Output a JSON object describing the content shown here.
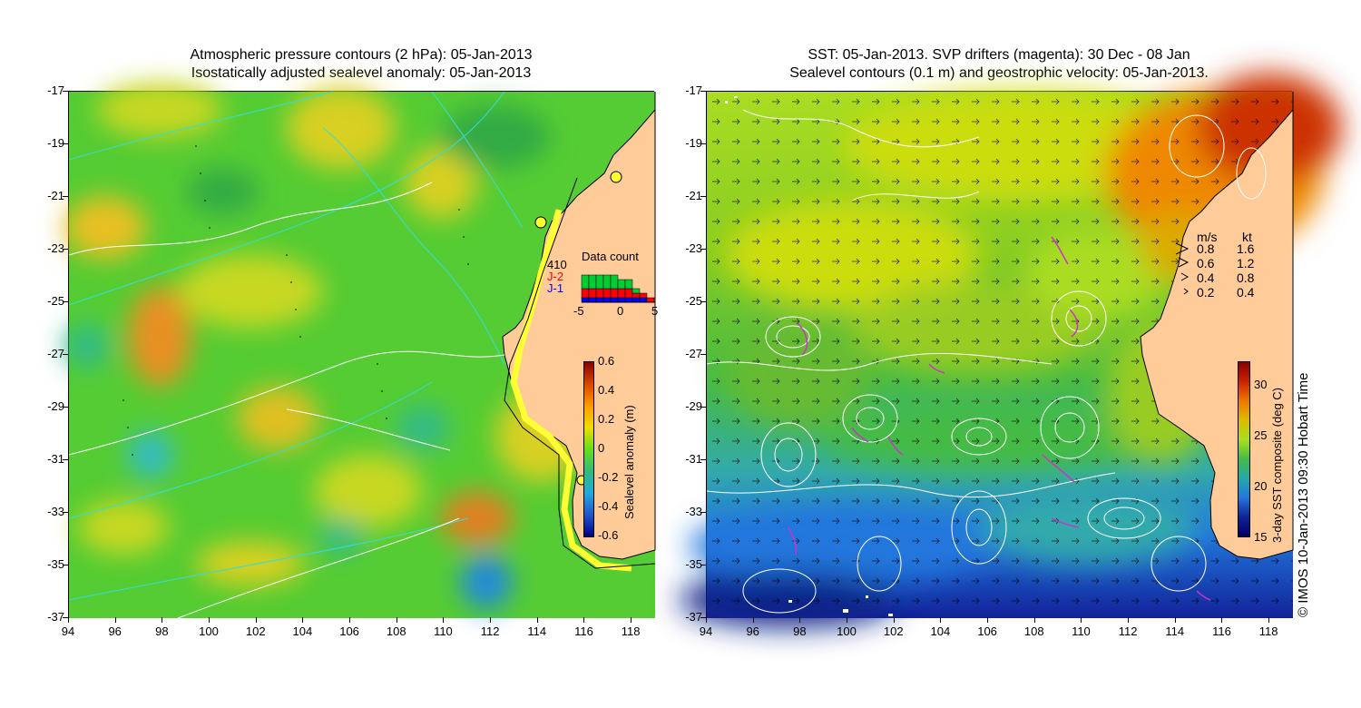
{
  "left_panel": {
    "title_line1": "Atmospheric pressure contours (2 hPa): 05-Jan-2013",
    "title_line2": "Isostatically adjusted sealevel anomaly: 05-Jan-2013",
    "colorbar": {
      "title": "Sealevel anomaly (m)",
      "ticks": [
        "0.6",
        "0.4",
        "0.2",
        "0",
        "-0.2",
        "-0.4",
        "-0.6"
      ]
    },
    "data_count": {
      "title": "Data count",
      "sat1": "410",
      "sat2": "J-2",
      "sat3": "J-1",
      "x_ticks": [
        "-5",
        "0",
        "5"
      ],
      "colors": {
        "sat1": "#00cc33",
        "sat2": "#ff0000",
        "sat3": "#0000ff"
      },
      "bars_sat1": [
        3,
        3,
        3,
        3,
        3,
        2,
        2,
        1,
        0,
        0
      ],
      "bars_sat2": [
        2,
        2,
        2,
        2,
        2,
        2,
        2,
        1,
        1,
        1
      ],
      "bars_sat3": [
        1,
        1,
        1,
        1,
        1,
        1,
        1,
        1,
        1,
        0
      ]
    }
  },
  "right_panel": {
    "title_line1": "SST: 05-Jan-2013. SVP drifters (magenta): 30 Dec - 08 Jan",
    "title_line2": "Sealevel contours (0.1 m) and geostrophic velocity: 05-Jan-2013.",
    "colorbar": {
      "title": "3-day SST composite (deg C)",
      "ticks": [
        "30",
        "25",
        "20",
        "15"
      ]
    },
    "velocity_legend": {
      "header_ms": "m/s",
      "header_kt": "kt",
      "rows": [
        {
          "ms": "0.8",
          "kt": "1.6"
        },
        {
          "ms": "0.6",
          "kt": "1.2"
        },
        {
          "ms": "0.4",
          "kt": "0.8"
        },
        {
          "ms": "0.2",
          "kt": "0.4"
        }
      ]
    }
  },
  "axes": {
    "y_ticks": [
      "-17",
      "-19",
      "-21",
      "-23",
      "-25",
      "-27",
      "-29",
      "-31",
      "-33",
      "-35",
      "-37"
    ],
    "x_ticks": [
      "94",
      "96",
      "98",
      "100",
      "102",
      "104",
      "106",
      "108",
      "110",
      "112",
      "114",
      "116",
      "118"
    ],
    "lat_range": [
      -37,
      -17
    ],
    "lon_range": [
      94,
      119
    ]
  },
  "credit": "© IMOS 10-Jan-2013 09:30 Hobart Time",
  "colors": {
    "land": "#ffcc99",
    "ocean_green": "#44cc33",
    "drifter": "#cc33cc",
    "contour_cyan": "#33dddd"
  }
}
